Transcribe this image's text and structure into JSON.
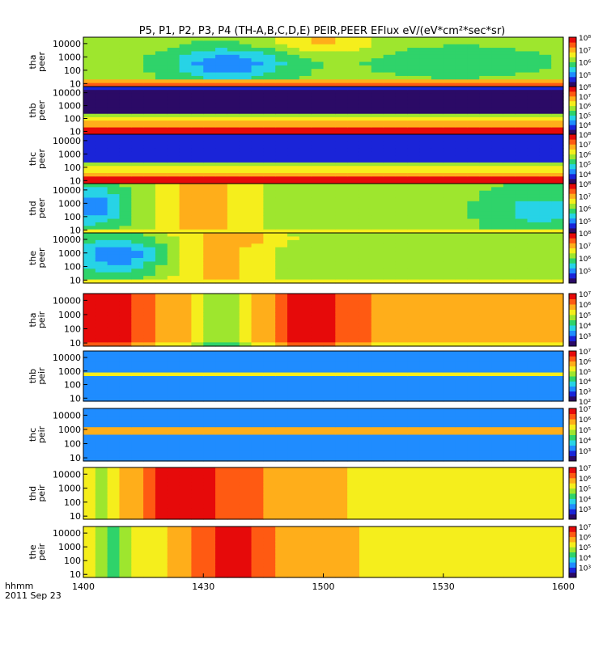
{
  "title": "P5, P1, P2, P3, P4 (TH-A,B,C,D,E) PEIR,PEER EFlux eV/(eV*cm²*sec*sr)",
  "footer": {
    "axis_label": "hhmm",
    "date": "2011 Sep 23"
  },
  "chart_data": {
    "type": "heatmap",
    "x_ticks": [
      "1400",
      "1430",
      "1500",
      "1530",
      "1600"
    ],
    "x_range": [
      "1400",
      "1600"
    ],
    "y_scale": "log",
    "y_range": [
      6,
      30000
    ],
    "colormap": [
      "#2b0a66",
      "#1a24d8",
      "#1f8cff",
      "#27d3e6",
      "#2fd36a",
      "#9ee62e",
      "#f5ee1c",
      "#ffae1a",
      "#ff5a12",
      "#e60a0a"
    ],
    "panels": [
      {
        "id": "tha_peer",
        "label": [
          "tha",
          "peer"
        ],
        "y_ticks": [
          "10000",
          "1000",
          "100",
          "10"
        ],
        "cbar": {
          "min_exp": 4,
          "max_exp": 8,
          "ticks": [
            "10⁸",
            "10⁷",
            "10⁶",
            "10⁵"
          ]
        }
      },
      {
        "id": "thb_peer",
        "label": [
          "thb",
          "peer"
        ],
        "y_ticks": [
          "10000",
          "1000",
          "100",
          "10"
        ],
        "cbar": {
          "min_exp": 3,
          "max_exp": 8,
          "ticks": [
            "10⁸",
            "10⁷",
            "10⁶",
            "10⁵",
            "10⁴"
          ]
        }
      },
      {
        "id": "thc_peer",
        "label": [
          "thc",
          "peer"
        ],
        "y_ticks": [
          "10000",
          "1000",
          "100",
          "10"
        ],
        "cbar": {
          "min_exp": 3,
          "max_exp": 8,
          "ticks": [
            "10⁸",
            "10⁷",
            "10⁶",
            "10⁵",
            "10⁴"
          ]
        }
      },
      {
        "id": "thd_peer",
        "label": [
          "thd",
          "peer"
        ],
        "y_ticks": [
          "10000",
          "1000",
          "100",
          "10"
        ],
        "cbar": {
          "min_exp": 4,
          "max_exp": 8,
          "ticks": [
            "10⁸",
            "10⁷",
            "10⁶",
            "10⁵"
          ]
        }
      },
      {
        "id": "the_peer",
        "label": [
          "the",
          "peer"
        ],
        "y_ticks": [
          "10000",
          "1000",
          "100",
          "10"
        ],
        "cbar": {
          "min_exp": 4,
          "max_exp": 8,
          "ticks": [
            "10⁸",
            "10⁷",
            "10⁶",
            "10⁵"
          ]
        }
      },
      {
        "id": "tha_peir",
        "label": [
          "tha",
          "peir"
        ],
        "y_ticks": [
          "10000",
          "1000",
          "100",
          "10"
        ],
        "cbar": {
          "min_exp": 2,
          "max_exp": 7,
          "ticks": [
            "10⁷",
            "10⁶",
            "10⁵",
            "10⁴",
            "10³"
          ]
        }
      },
      {
        "id": "thb_peir",
        "label": [
          "thb",
          "peir"
        ],
        "y_ticks": [
          "10000",
          "1000",
          "100",
          "10"
        ],
        "cbar": {
          "min_exp": 2,
          "max_exp": 7,
          "ticks": [
            "10⁷",
            "10⁶",
            "10⁵",
            "10⁴",
            "10³",
            "10²"
          ]
        }
      },
      {
        "id": "thc_peir",
        "label": [
          "thc",
          "peir"
        ],
        "y_ticks": [
          "10000",
          "1000",
          "100",
          "10"
        ],
        "cbar": {
          "min_exp": 2,
          "max_exp": 7,
          "ticks": [
            "10⁷",
            "10⁶",
            "10⁵",
            "10⁴",
            "10³"
          ]
        }
      },
      {
        "id": "thd_peir",
        "label": [
          "thd",
          "peir"
        ],
        "y_ticks": [
          "10000",
          "1000",
          "100",
          "10"
        ],
        "cbar": {
          "min_exp": 2,
          "max_exp": 7,
          "ticks": [
            "10⁷",
            "10⁶",
            "10⁵",
            "10⁴",
            "10³"
          ]
        }
      },
      {
        "id": "the_peir",
        "label": [
          "the",
          "peir"
        ],
        "y_ticks": [
          "10000",
          "1000",
          "100",
          "10"
        ],
        "cbar": {
          "min_exp": 2,
          "max_exp": 7,
          "ticks": [
            "10⁷",
            "10⁶",
            "10⁵",
            "10⁴",
            "10³"
          ]
        }
      }
    ]
  }
}
